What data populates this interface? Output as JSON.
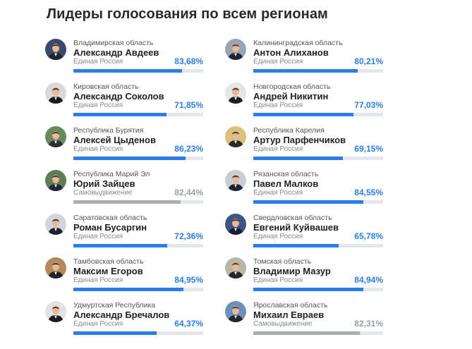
{
  "page": {
    "title": "Лидеры голосования по всем регионам"
  },
  "colors": {
    "accent": "#2b7de9",
    "neutral": "#a7adb3",
    "track": "#e3e6ea"
  },
  "leaders": [
    {
      "region": "Владимирская область",
      "name": "Александр Авдеев",
      "party": "Единая Россия",
      "percent": "83,68%",
      "share": 0.8368,
      "independent": false,
      "avatar_icon": "person-portrait-icon",
      "avatar_bg": "#3b4a6b",
      "suit": "#1d2433"
    },
    {
      "region": "Калининградская область",
      "name": "Антон Алиханов",
      "party": "Единая Россия",
      "percent": "80,21%",
      "share": 0.8021,
      "independent": false,
      "avatar_icon": "person-portrait-icon",
      "avatar_bg": "#9aa4b0",
      "suit": "#202634"
    },
    {
      "region": "Кировская область",
      "name": "Александр Соколов",
      "party": "Единая Россия",
      "percent": "71,85%",
      "share": 0.7185,
      "independent": false,
      "avatar_icon": "person-portrait-icon",
      "avatar_bg": "#d9d9d9",
      "suit": "#1a1a1a"
    },
    {
      "region": "Новгородская область",
      "name": "Андрей Никитин",
      "party": "Единая Россия",
      "percent": "77,03%",
      "share": 0.7703,
      "independent": false,
      "avatar_icon": "person-portrait-icon",
      "avatar_bg": "#e6e6e6",
      "suit": "#1e1e1e"
    },
    {
      "region": "Республика Бурятия",
      "name": "Алексей Цыденов",
      "party": "Единая Россия",
      "percent": "86,23%",
      "share": 0.8623,
      "independent": false,
      "avatar_icon": "person-portrait-icon",
      "avatar_bg": "#6a8a5c",
      "suit": "#2a2f38"
    },
    {
      "region": "Республика Карелия",
      "name": "Артур Парфенчиков",
      "party": "Единая Россия",
      "percent": "69,15%",
      "share": 0.6915,
      "independent": false,
      "avatar_icon": "person-portrait-icon",
      "avatar_bg": "#d8c27a",
      "suit": "#2b2b2b"
    },
    {
      "region": "Республика Марий Эл",
      "name": "Юрий Зайцев",
      "party": "Самовыдвижение",
      "percent": "82,44%",
      "share": 0.8244,
      "independent": true,
      "avatar_icon": "person-portrait-icon",
      "avatar_bg": "#5f7d57",
      "suit": "#1f2a36"
    },
    {
      "region": "Рязанская область",
      "name": "Павел Малков",
      "party": "Единая Россия",
      "percent": "84,55%",
      "share": 0.8455,
      "independent": false,
      "avatar_icon": "person-portrait-icon",
      "avatar_bg": "#c9ced6",
      "suit": "#1d2230"
    },
    {
      "region": "Саратовская область",
      "name": "Роман Бусаргин",
      "party": "Единая Россия",
      "percent": "72,36%",
      "share": 0.7236,
      "independent": false,
      "avatar_icon": "person-portrait-icon",
      "avatar_bg": "#d1d6dd",
      "suit": "#1c2433"
    },
    {
      "region": "Свердловская область",
      "name": "Евгений Куйвашев",
      "party": "Единая Россия",
      "percent": "65,78%",
      "share": 0.6578,
      "independent": false,
      "avatar_icon": "person-portrait-icon",
      "avatar_bg": "#3e5486",
      "suit": "#1b2030"
    },
    {
      "region": "Тамбовская область",
      "name": "Максим Егоров",
      "party": "Единая Россия",
      "percent": "84,95%",
      "share": 0.8495,
      "independent": false,
      "avatar_icon": "person-portrait-icon",
      "avatar_bg": "#b58a5a",
      "suit": "#222222"
    },
    {
      "region": "Томская область",
      "name": "Владимир Мазур",
      "party": "Единая Россия",
      "percent": "84,94%",
      "share": 0.8494,
      "independent": false,
      "avatar_icon": "person-portrait-icon",
      "avatar_bg": "#b9b6a6",
      "suit": "#262626"
    },
    {
      "region": "Удмуртская Республика",
      "name": "Александр Бречалов",
      "party": "Единая Россия",
      "percent": "64,37%",
      "share": 0.6437,
      "independent": false,
      "avatar_icon": "person-portrait-icon",
      "avatar_bg": "#e2e2e2",
      "suit": "#1c1c1c"
    },
    {
      "region": "Ярославская область",
      "name": "Михаил Евраев",
      "party": "Самовыдвижение",
      "percent": "82,31%",
      "share": 0.8231,
      "independent": true,
      "avatar_icon": "person-portrait-icon",
      "avatar_bg": "#6d8fb8",
      "suit": "#202733"
    }
  ]
}
